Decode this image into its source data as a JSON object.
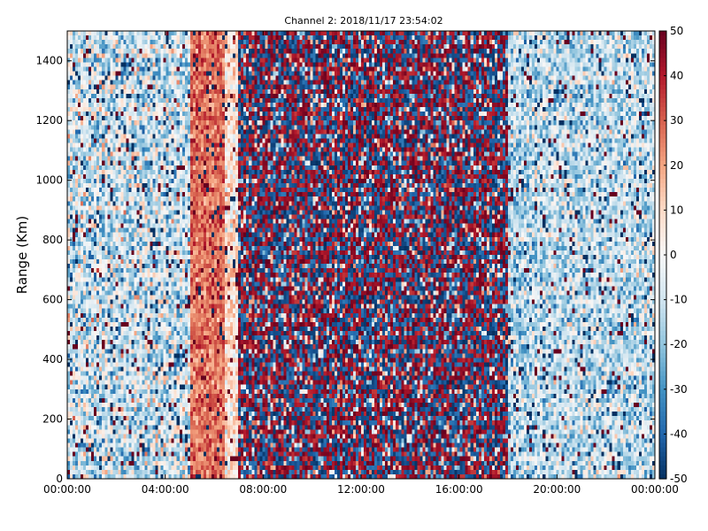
{
  "chart_data": {
    "type": "heatmap",
    "title": "Channel 2: 2018/11/17 23:54:02",
    "xlabel": "",
    "ylabel": "Range (Km)",
    "x_tick_labels": [
      "00:00:00",
      "04:00:00",
      "08:00:00",
      "12:00:00",
      "16:00:00",
      "20:00:00",
      "00:00:00"
    ],
    "x_range_hours": [
      0,
      24
    ],
    "y_ticks": [
      0,
      200,
      400,
      600,
      800,
      1000,
      1200,
      1400
    ],
    "ylim": [
      0,
      1500
    ],
    "colorbar": {
      "min": -50,
      "max": 50,
      "ticks": [
        50,
        40,
        30,
        20,
        10,
        0,
        -10,
        -20,
        -30,
        -40,
        -50
      ],
      "colormap": "RdBu_r"
    },
    "time_segments": [
      {
        "start_hour": 0.0,
        "end_hour": 5.0,
        "mean": -10,
        "noise": 22
      },
      {
        "start_hour": 5.0,
        "end_hour": 6.4,
        "mean": 28,
        "noise": 10
      },
      {
        "start_hour": 6.4,
        "end_hour": 7.0,
        "mean": 8,
        "noise": 14
      },
      {
        "start_hour": 7.0,
        "end_hour": 18.0,
        "mean": 0,
        "noise": 50
      },
      {
        "start_hour": 18.0,
        "end_hour": 19.0,
        "mean": -14,
        "noise": 18
      },
      {
        "start_hour": 19.0,
        "end_hour": 24.0,
        "mean": -12,
        "noise": 18
      }
    ],
    "colors": {
      "low": "#053061",
      "mid": "#f7f7f7",
      "high": "#67001f"
    }
  }
}
